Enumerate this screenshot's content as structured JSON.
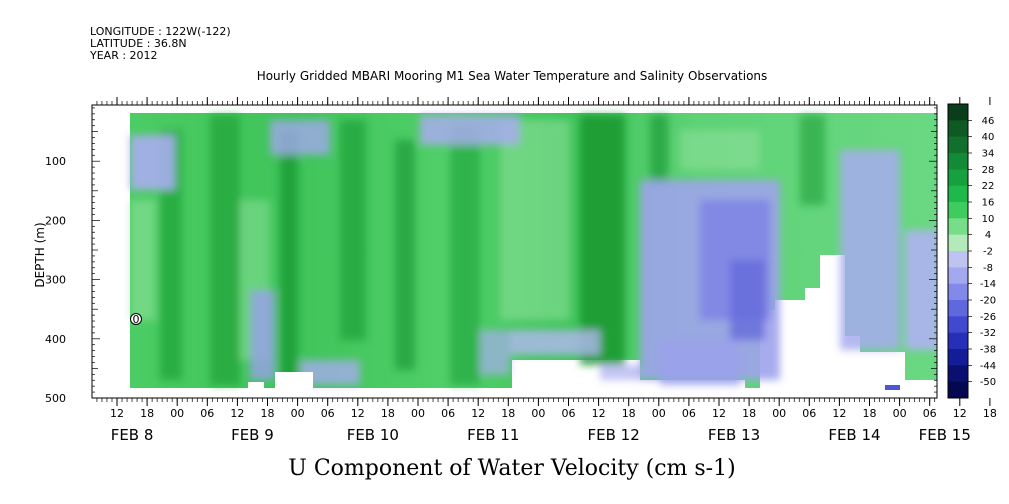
{
  "header": {
    "longitude": "LONGITUDE : 122W(-122)",
    "latitude": "LATITUDE : 36.8N",
    "year": "YEAR : 2012"
  },
  "chart_title": "Hourly Gridded MBARI Mooring M1 Sea Water Temperature and Salinity Observations",
  "variable_title": "U Component of Water Velocity (cm s-1)",
  "chart_data": {
    "type": "heatmap",
    "ylabel": "DEPTH (m)",
    "y_ticks": [
      100,
      200,
      300,
      400,
      500
    ],
    "y_range": [
      500,
      0
    ],
    "x_hour_labels": [
      "12",
      "18",
      "00",
      "06",
      "12",
      "18",
      "00",
      "06",
      "12",
      "18",
      "00",
      "06",
      "12",
      "18",
      "00",
      "06",
      "12",
      "18",
      "00",
      "06",
      "12",
      "18",
      "00",
      "06",
      "12",
      "18",
      "00",
      "06",
      "12",
      "18",
      "00",
      "06"
    ],
    "x_date_labels": [
      "FEB 8",
      "FEB 9",
      "FEB 10",
      "FEB 11",
      "FEB 12",
      "FEB 13",
      "FEB 14",
      "FEB 15"
    ],
    "colorbar_levels": [
      "46",
      "40",
      "34",
      "28",
      "22",
      "16",
      "10",
      "4",
      "-2",
      "-8",
      "-14",
      "-20",
      "-26",
      "-32",
      "-38",
      "-44",
      "-50"
    ],
    "colorbar_colors": [
      "#0a3d1a",
      "#0e5a24",
      "#10702c",
      "#138a36",
      "#16a03e",
      "#1fb84a",
      "#3fcc5e",
      "#77dd88",
      "#b4eab9",
      "#bfc3f2",
      "#a3a9ee",
      "#8389e8",
      "#6168dd",
      "#4149cf",
      "#262fb8",
      "#141c98",
      "#0a0f70",
      "#050850"
    ],
    "annotations": [
      "0"
    ]
  }
}
